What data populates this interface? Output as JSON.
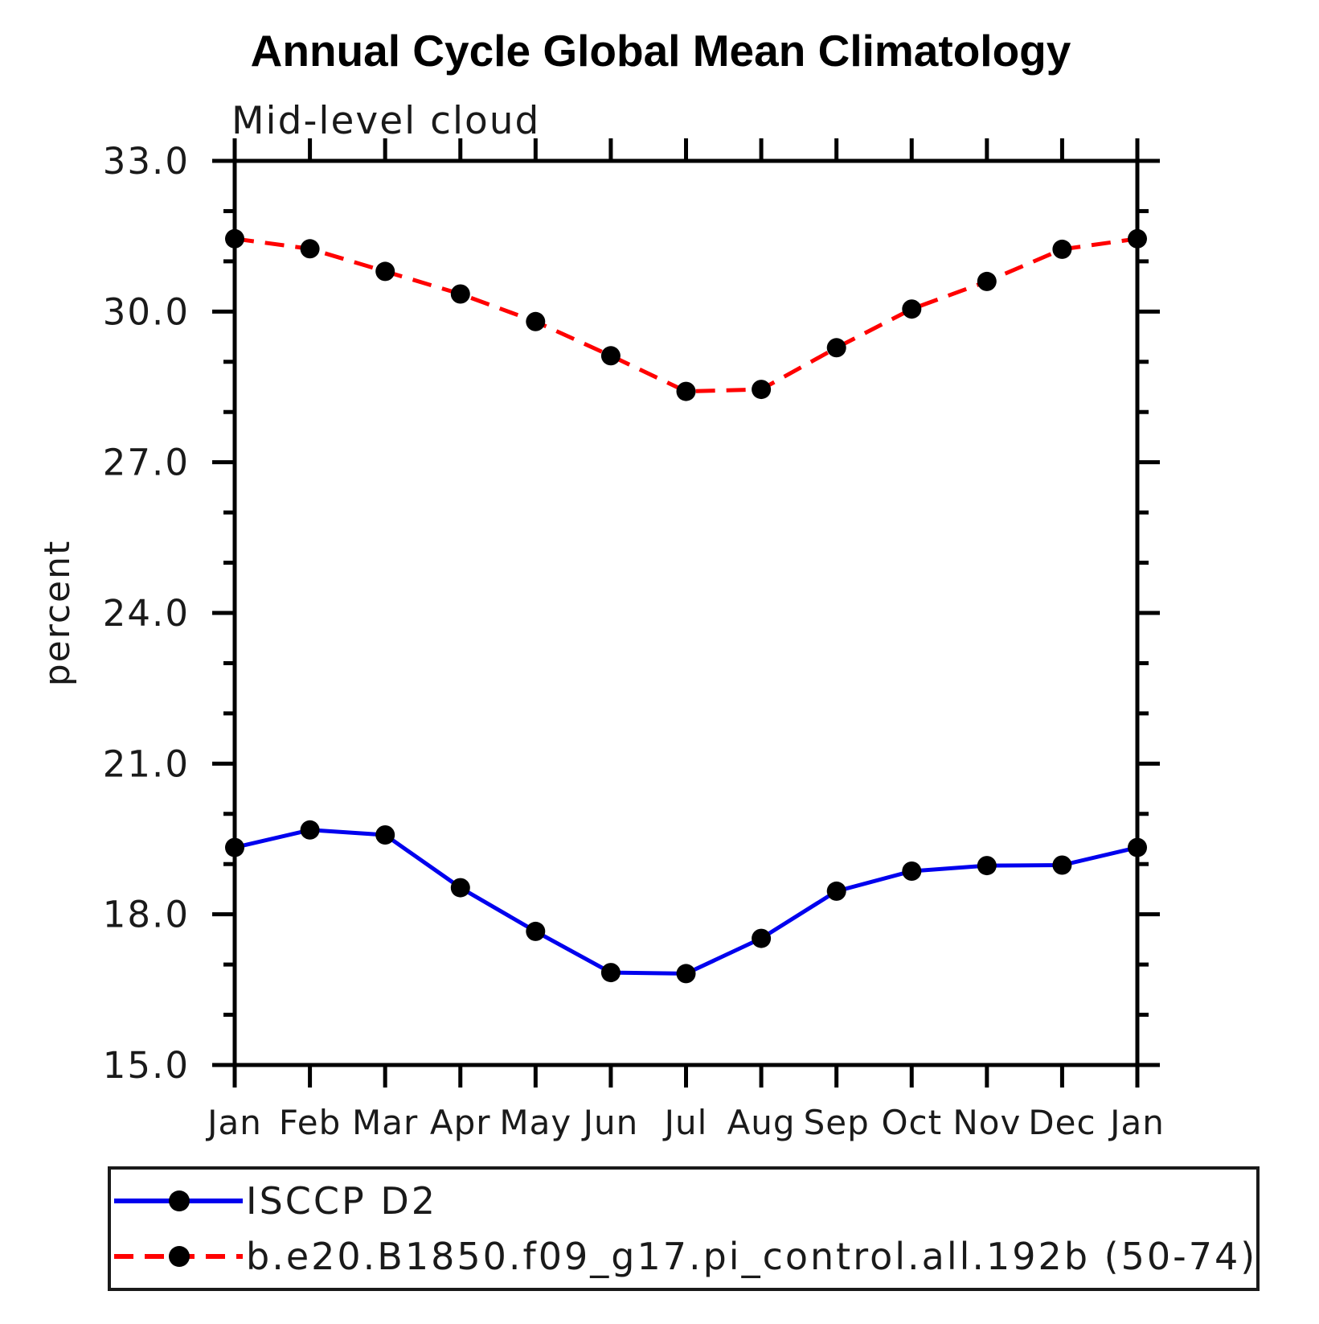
{
  "title": "Annual Cycle Global Mean Climatology",
  "subtitle": "Mid-level cloud",
  "ylabel": "percent",
  "chart_data": {
    "type": "line",
    "categories": [
      "Jan",
      "Feb",
      "Mar",
      "Apr",
      "May",
      "Jun",
      "Jul",
      "Aug",
      "Sep",
      "Oct",
      "Nov",
      "Dec",
      "Jan"
    ],
    "xlabel": "",
    "ylabel": "percent",
    "ylim": [
      15.0,
      33.0
    ],
    "ytick_major": [
      15.0,
      18.0,
      21.0,
      24.0,
      27.0,
      30.0,
      33.0
    ],
    "ytick_labels": [
      "15.0",
      "18.0",
      "21.0",
      "24.0",
      "27.0",
      "30.0",
      "33.0"
    ],
    "ytick_minor_step": 1.0,
    "grid": false,
    "legend_position": "bottom-box",
    "series": [
      {
        "name": "ISCCP D2",
        "color": "#0000ee",
        "line_style": "solid",
        "marker": "filled-circle",
        "marker_color": "#000000",
        "values": [
          19.33,
          19.68,
          19.58,
          18.53,
          17.66,
          16.84,
          16.82,
          17.52,
          18.46,
          18.86,
          18.97,
          18.98,
          19.33
        ]
      },
      {
        "name": "b.e20.B1850.f09_g17.pi_control.all.192b (50-74)",
        "color": "#ff0000",
        "line_style": "dashed",
        "marker": "filled-circle",
        "marker_color": "#000000",
        "values": [
          31.45,
          31.25,
          30.8,
          30.35,
          29.8,
          29.12,
          28.41,
          28.45,
          29.28,
          30.05,
          30.6,
          31.24,
          31.45
        ]
      }
    ]
  }
}
